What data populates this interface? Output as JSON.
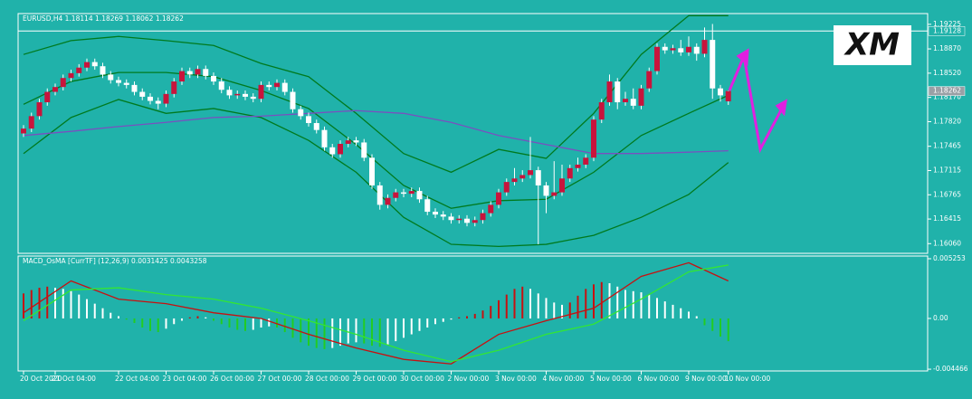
{
  "chart_data": {
    "type": "candlestick",
    "title": "EURUSD,H4  1.18114 1.18269 1.18062 1.18262",
    "logo": "XM",
    "up_color": "#c8143c",
    "down_color": "#ffffff",
    "ylim": [
      1.1592,
      1.1938
    ],
    "yticks": [
      1.19225,
      {
        "value": 1.1887,
        "label": "1.18870"
      },
      {
        "value": 1.1852,
        "label": "1.18520"
      },
      {
        "value": 1.1817,
        "label": "1.18170"
      },
      {
        "value": 1.1782,
        "label": "1.17820"
      },
      1.17465,
      1.17115,
      1.16765,
      1.16415,
      {
        "value": 1.1606,
        "label": "1.16060"
      }
    ],
    "price_lines": [
      1.19128,
      1.18262
    ],
    "x_labels": [
      {
        "value": 0,
        "label": "20 Oct 2020"
      },
      {
        "value": 4,
        "label": "21 Oct 04:00"
      },
      {
        "value": 12,
        "label": "22 Oct 04:00"
      },
      {
        "value": 18,
        "label": "23 Oct 04:00"
      },
      {
        "value": 24,
        "label": "26 Oct 00:00"
      },
      {
        "value": 30,
        "label": "27 Oct 00:00"
      },
      {
        "value": 36,
        "label": "28 Oct 00:00"
      },
      {
        "value": 42,
        "label": "29 Oct 00:00"
      },
      {
        "value": 48,
        "label": "30 Oct 00:00"
      },
      {
        "value": 54,
        "label": "2 Nov 00:00"
      },
      {
        "value": 60,
        "label": "3 Nov 00:00"
      },
      {
        "value": 66,
        "label": "4 Nov 00:00"
      },
      {
        "value": 72,
        "label": "5 Nov 00:00"
      },
      {
        "value": 78,
        "label": "6 Nov 00:00"
      },
      {
        "value": 84,
        "label": "9 Nov 00:00"
      },
      {
        "value": 89,
        "label": "10 Nov 00:00"
      }
    ],
    "ohlc": [
      [
        1.1765,
        1.1777,
        1.176,
        1.1772
      ],
      [
        1.1772,
        1.1795,
        1.1767,
        1.179
      ],
      [
        1.179,
        1.1815,
        1.1785,
        1.181
      ],
      [
        1.181,
        1.183,
        1.1805,
        1.1825
      ],
      [
        1.1825,
        1.1837,
        1.182,
        1.1832
      ],
      [
        1.1832,
        1.185,
        1.1827,
        1.1845
      ],
      [
        1.1845,
        1.1857,
        1.184,
        1.1852
      ],
      [
        1.1852,
        1.1865,
        1.1847,
        1.186
      ],
      [
        1.186,
        1.1873,
        1.1855,
        1.1868
      ],
      [
        1.1868,
        1.1873,
        1.1857,
        1.1862
      ],
      [
        1.1862,
        1.1867,
        1.1845,
        1.185
      ],
      [
        1.185,
        1.1855,
        1.1837,
        1.1842
      ],
      [
        1.1842,
        1.1847,
        1.1833,
        1.1838
      ],
      [
        1.1838,
        1.1843,
        1.183,
        1.1835
      ],
      [
        1.1835,
        1.184,
        1.182,
        1.1825
      ],
      [
        1.1825,
        1.183,
        1.1813,
        1.1818
      ],
      [
        1.1818,
        1.1823,
        1.1807,
        1.1812
      ],
      [
        1.1812,
        1.1817,
        1.18,
        1.1808
      ],
      [
        1.1808,
        1.1827,
        1.1803,
        1.1822
      ],
      [
        1.1822,
        1.1845,
        1.1817,
        1.184
      ],
      [
        1.184,
        1.186,
        1.1835,
        1.1855
      ],
      [
        1.1855,
        1.186,
        1.1845,
        1.185
      ],
      [
        1.185,
        1.1863,
        1.1845,
        1.1858
      ],
      [
        1.1858,
        1.1863,
        1.1843,
        1.1848
      ],
      [
        1.1848,
        1.1853,
        1.1835,
        1.184
      ],
      [
        1.184,
        1.1845,
        1.1823,
        1.1828
      ],
      [
        1.1828,
        1.1833,
        1.1815,
        1.182
      ],
      [
        1.182,
        1.1827,
        1.1815,
        1.1822
      ],
      [
        1.1822,
        1.1827,
        1.1813,
        1.1818
      ],
      [
        1.1818,
        1.1823,
        1.181,
        1.1815
      ],
      [
        1.1815,
        1.184,
        1.181,
        1.1835
      ],
      [
        1.1835,
        1.184,
        1.1827,
        1.1832
      ],
      [
        1.1832,
        1.1843,
        1.1827,
        1.1838
      ],
      [
        1.1838,
        1.1843,
        1.182,
        1.1825
      ],
      [
        1.1825,
        1.183,
        1.1795,
        1.18
      ],
      [
        1.18,
        1.1805,
        1.1785,
        1.179
      ],
      [
        1.179,
        1.1795,
        1.1775,
        1.178
      ],
      [
        1.178,
        1.1785,
        1.1765,
        1.177
      ],
      [
        1.177,
        1.1775,
        1.174,
        1.1745
      ],
      [
        1.1745,
        1.175,
        1.173,
        1.1735
      ],
      [
        1.1735,
        1.1755,
        1.173,
        1.175
      ],
      [
        1.175,
        1.176,
        1.1745,
        1.1755
      ],
      [
        1.1755,
        1.176,
        1.1747,
        1.1752
      ],
      [
        1.1752,
        1.1757,
        1.1725,
        1.173
      ],
      [
        1.173,
        1.1735,
        1.1685,
        1.169
      ],
      [
        1.169,
        1.1695,
        1.1655,
        1.1662
      ],
      [
        1.1662,
        1.1677,
        1.1657,
        1.1672
      ],
      [
        1.1672,
        1.1685,
        1.1667,
        1.168
      ],
      [
        1.168,
        1.1685,
        1.1673,
        1.1678
      ],
      [
        1.1678,
        1.1687,
        1.1673,
        1.1682
      ],
      [
        1.1682,
        1.1687,
        1.1665,
        1.167
      ],
      [
        1.167,
        1.1675,
        1.1647,
        1.1652
      ],
      [
        1.1652,
        1.1657,
        1.1643,
        1.1648
      ],
      [
        1.1648,
        1.1653,
        1.164,
        1.1645
      ],
      [
        1.1645,
        1.165,
        1.1635,
        1.164
      ],
      [
        1.164,
        1.1647,
        1.1635,
        1.1642
      ],
      [
        1.1642,
        1.1647,
        1.1631,
        1.1636
      ],
      [
        1.1636,
        1.1645,
        1.1631,
        1.164
      ],
      [
        1.164,
        1.1655,
        1.1635,
        1.165
      ],
      [
        1.165,
        1.1667,
        1.1645,
        1.1662
      ],
      [
        1.1662,
        1.1685,
        1.1657,
        1.168
      ],
      [
        1.168,
        1.17,
        1.1675,
        1.1695
      ],
      [
        1.1695,
        1.1715,
        1.169,
        1.17
      ],
      [
        1.17,
        1.1712,
        1.1695,
        1.1705
      ],
      [
        1.1705,
        1.176,
        1.17,
        1.1712
      ],
      [
        1.1712,
        1.1717,
        1.1605,
        1.169
      ],
      [
        1.169,
        1.1695,
        1.165,
        1.1675
      ],
      [
        1.1675,
        1.1725,
        1.167,
        1.168
      ],
      [
        1.168,
        1.172,
        1.1675,
        1.17
      ],
      [
        1.17,
        1.172,
        1.1695,
        1.1715
      ],
      [
        1.1715,
        1.173,
        1.171,
        1.172
      ],
      [
        1.172,
        1.1735,
        1.1715,
        1.173
      ],
      [
        1.173,
        1.179,
        1.1725,
        1.1785
      ],
      [
        1.1785,
        1.1815,
        1.178,
        1.181
      ],
      [
        1.181,
        1.185,
        1.1805,
        1.184
      ],
      [
        1.184,
        1.1845,
        1.18,
        1.181
      ],
      [
        1.181,
        1.1825,
        1.1805,
        1.1815
      ],
      [
        1.1815,
        1.183,
        1.18,
        1.1805
      ],
      [
        1.1805,
        1.1835,
        1.18,
        1.183
      ],
      [
        1.183,
        1.186,
        1.1825,
        1.1855
      ],
      [
        1.1855,
        1.1895,
        1.185,
        1.189
      ],
      [
        1.189,
        1.1895,
        1.188,
        1.1885
      ],
      [
        1.1885,
        1.1893,
        1.188,
        1.1888
      ],
      [
        1.1888,
        1.19,
        1.1877,
        1.1882
      ],
      [
        1.1882,
        1.1905,
        1.1877,
        1.189
      ],
      [
        1.189,
        1.1895,
        1.187,
        1.188
      ],
      [
        1.188,
        1.1918,
        1.1875,
        1.19
      ],
      [
        1.19,
        1.1923,
        1.1815,
        1.183
      ],
      [
        1.183,
        1.1835,
        1.1811,
        1.182
      ],
      [
        1.18114,
        1.18269,
        1.18062,
        1.18262
      ]
    ],
    "overlay_x": [
      0,
      6,
      12,
      18,
      24,
      30,
      36,
      42,
      48,
      54,
      60,
      66,
      72,
      78,
      84,
      89
    ],
    "series": [
      {
        "color": "#007a1e",
        "values": [
          1.1879,
          1.1899,
          1.1905,
          1.1899,
          1.1892,
          1.1866,
          1.1847,
          1.1794,
          1.1736,
          1.1709,
          1.1742,
          1.1729,
          1.1794,
          1.1879,
          1.1935,
          1.1935
        ]
      },
      {
        "color": "#007a1e",
        "values": [
          1.1807,
          1.184,
          1.1853,
          1.1853,
          1.1847,
          1.1827,
          1.1801,
          1.1749,
          1.169,
          1.1657,
          1.1668,
          1.167,
          1.1709,
          1.1762,
          1.1794,
          1.182
        ]
      },
      {
        "color": "#007a1e",
        "values": [
          1.1736,
          1.1788,
          1.1814,
          1.1794,
          1.1801,
          1.1788,
          1.1755,
          1.1709,
          1.1644,
          1.1605,
          1.1602,
          1.1605,
          1.1618,
          1.1644,
          1.1677,
          1.1723
        ]
      },
      {
        "color": "#7a4fc0",
        "values": [
          1.1762,
          1.1768,
          1.1775,
          1.1781,
          1.1788,
          1.179,
          1.1794,
          1.1798,
          1.1794,
          1.1781,
          1.1762,
          1.1749,
          1.1736,
          1.1736,
          1.1738,
          1.174
        ]
      }
    ],
    "macd": {
      "title": "MACD_OsMA [CurrTF] (12,26,9) 0.0031425 0.0043258",
      "ylim": [
        -0.00462,
        0.00549
      ],
      "yticks": [
        0.005253,
        {
          "value": 0,
          "label": "0.00"
        },
        -0.004466
      ],
      "rise_color": "#c81010",
      "fall_color": "#ffffff",
      "neg_fall_color": "#22cc22",
      "histogram": [
        0.0022,
        0.0025,
        0.0027,
        0.0028,
        0.0027,
        0.0026,
        0.0024,
        0.0021,
        0.0017,
        0.0013,
        0.0009,
        0.0005,
        0.0002,
        -0.0001,
        -0.0004,
        -0.0008,
        -0.0011,
        -0.0012,
        -0.0009,
        -0.0005,
        -0.0002,
        0.0001,
        0.0002,
        0.0001,
        -0.0002,
        -0.0005,
        -0.0008,
        -0.001,
        -0.0011,
        -0.001,
        -0.0008,
        -0.0007,
        -0.0008,
        -0.0012,
        -0.0017,
        -0.0021,
        -0.0024,
        -0.0026,
        -0.0027,
        -0.0026,
        -0.0024,
        -0.0022,
        -0.0021,
        -0.0022,
        -0.0024,
        -0.0025,
        -0.0023,
        -0.002,
        -0.0017,
        -0.0014,
        -0.0011,
        -0.0008,
        -0.0005,
        -0.0003,
        -0.0001,
        0.0001,
        0.0002,
        0.0004,
        0.0007,
        0.0011,
        0.0016,
        0.0021,
        0.0026,
        0.0028,
        0.0026,
        0.0022,
        0.0018,
        0.0014,
        0.0012,
        0.0014,
        0.002,
        0.0026,
        0.003,
        0.0032,
        0.0031,
        0.0028,
        0.0025,
        0.0024,
        0.0023,
        0.0021,
        0.0018,
        0.0015,
        0.0012,
        0.0009,
        0.0006,
        0.0002,
        -0.0006,
        -0.0011,
        -0.0016,
        -0.002
      ],
      "series": [
        {
          "color": "#c81010",
          "values": [
            0.0005,
            0.0033,
            0.0017,
            0.0013,
            0.0005,
            0,
            -0.0014,
            -0.0026,
            -0.0036,
            -0.004,
            -0.0014,
            -0.0002,
            0.0009,
            0.0037,
            0.0049,
            0.0033
          ]
        },
        {
          "color": "#33e633",
          "values": [
            -0.0002,
            0.0025,
            0.0027,
            0.0021,
            0.0017,
            0.0009,
            -0.0002,
            -0.0014,
            -0.0028,
            -0.0038,
            -0.0028,
            -0.0014,
            -0.0005,
            0.0017,
            0.0041,
            0.0047
          ]
        }
      ]
    }
  }
}
